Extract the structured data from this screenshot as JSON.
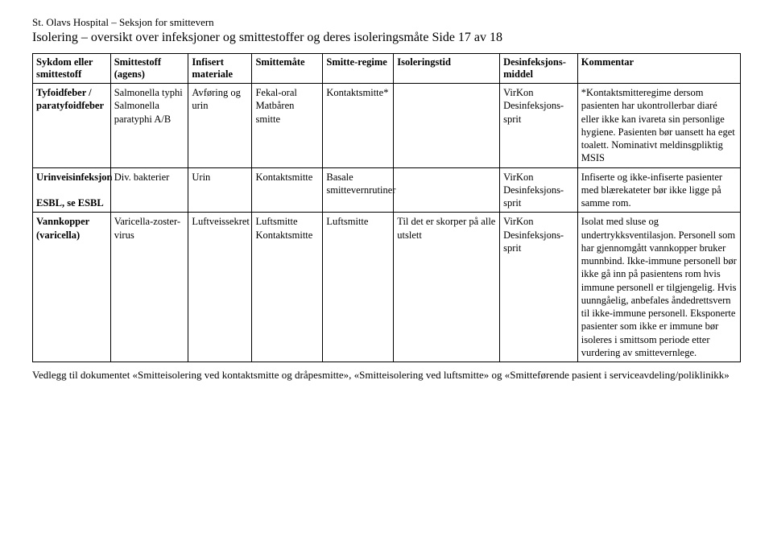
{
  "header": {
    "org": "St. Olavs Hospital – Seksjon for smittevern",
    "title": "Isolering – oversikt over infeksjoner og smittestoffer og deres isoleringsmåte Side 17 av 18"
  },
  "columns": [
    "Sykdom eller smittestoff",
    "Smittestoff (agens)",
    "Infisert materiale",
    "Smittemåte",
    "Smitte-regime",
    "Isoleringstid",
    "Desinfeksjons-middel",
    "Kommentar"
  ],
  "rows": [
    {
      "c1": "Tyfoidfeber / paratyfoidfeber",
      "c2": "Salmonella typhi Salmonella paratyphi A/B",
      "c3": "Avføring og urin",
      "c4": "Fekal-oral Matbåren smitte",
      "c5": "Kontaktsmitte*",
      "c6": "",
      "c7": "VirKon Desinfeksjons-sprit",
      "c8": "*Kontaktsmitteregime dersom pasienten har ukontrollerbar diaré eller ikke kan ivareta sin personlige hygiene. Pasienten bør uansett ha eget toalett. Nominativt meldinsgpliktig MSIS"
    },
    {
      "c1": "Urinveisinfeksjon\n\nESBL, se ESBL",
      "c2": "Div. bakterier",
      "c3": "Urin",
      "c4": "Kontaktsmitte",
      "c5": "Basale smittevernrutiner",
      "c6": "",
      "c7": "VirKon Desinfeksjons-sprit",
      "c8": "Infiserte og ikke-infiserte pasienter med blærekateter bør ikke ligge på samme rom."
    },
    {
      "c1": "Vannkopper (varicella)",
      "c2": "Varicella-zoster-virus",
      "c3": "Luftveissekret",
      "c4": "Luftsmitte Kontaktsmitte",
      "c5": "Luftsmitte",
      "c6": "Til det er skorper på alle utslett",
      "c7": "VirKon Desinfeksjons-sprit",
      "c8": "Isolat med sluse og undertrykksventilasjon. Personell som har gjennomgått vannkopper bruker munnbind. Ikke-immune personell bør ikke gå inn på pasientens rom hvis immune personell er tilgjengelig. Hvis uunngåelig, anbefales åndedrettsvern til ikke-immune personell. Eksponerte pasienter som ikke er immune bør isoleres i smittsom periode etter vurdering av smittevernlege."
    }
  ],
  "footer": "Vedlegg til dokumentet «Smitteisolering ved kontaktsmitte og dråpesmitte», «Smitteisolering ved luftsmitte» og «Smitteførende pasient i serviceavdeling/poliklinikk»"
}
